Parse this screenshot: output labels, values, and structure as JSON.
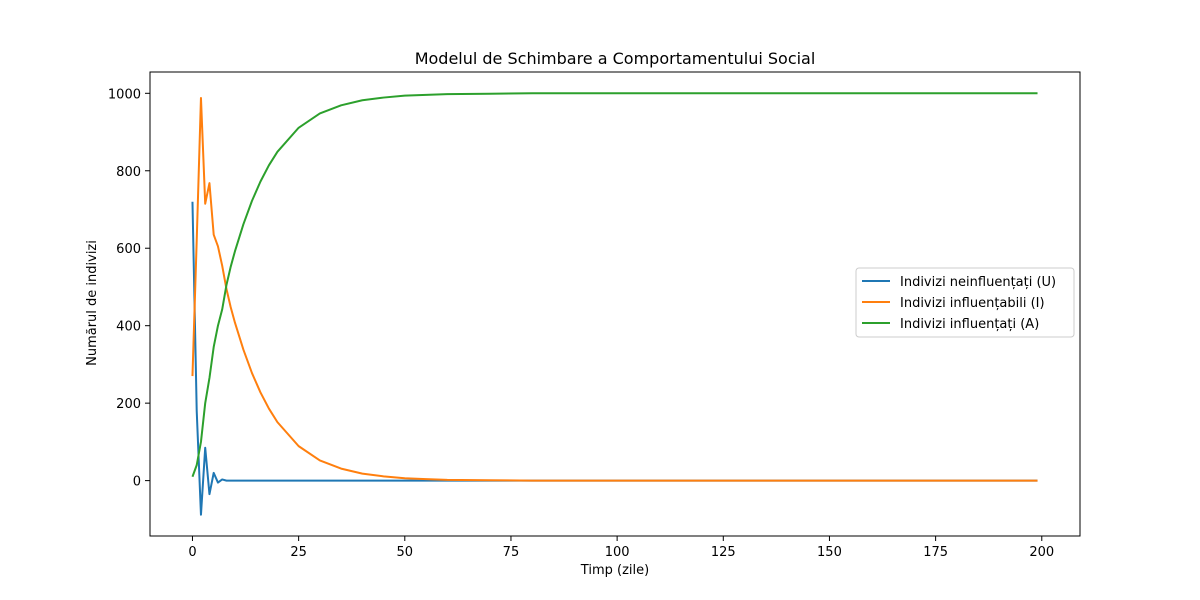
{
  "chart_data": {
    "type": "line",
    "title": "Modelul de Schimbare a Comportamentului Social",
    "xlabel": "Timp (zile)",
    "ylabel": "Numărul de indivizi",
    "xlim": [
      -10,
      209
    ],
    "ylim": [
      -143,
      1055
    ],
    "xticks": [
      0,
      25,
      50,
      75,
      100,
      125,
      150,
      175,
      200
    ],
    "yticks": [
      0,
      200,
      400,
      600,
      800,
      1000
    ],
    "grid": false,
    "legend_position": "center-right",
    "series": [
      {
        "name": "Indivizi neinfluențați (U)",
        "color": "#1f77b4",
        "x": [
          0,
          1,
          2,
          3,
          4,
          5,
          6,
          7,
          8,
          10,
          15,
          20,
          50,
          100,
          150,
          199
        ],
        "y": [
          720,
          180,
          -88,
          85,
          -35,
          20,
          -5,
          3,
          0,
          0,
          0,
          0,
          0,
          0,
          0,
          0
        ]
      },
      {
        "name": "Indivizi influențabili (I)",
        "color": "#ff7f0e",
        "x": [
          0,
          1,
          2,
          3,
          4,
          5,
          6,
          7,
          8,
          9,
          10,
          12,
          14,
          16,
          18,
          20,
          25,
          30,
          35,
          40,
          45,
          50,
          55,
          60,
          70,
          80,
          100,
          150,
          199
        ],
        "y": [
          270,
          620,
          988,
          715,
          768,
          635,
          605,
          555,
          495,
          448,
          408,
          338,
          278,
          228,
          186,
          151,
          89,
          52,
          31,
          18,
          11,
          6,
          4,
          2,
          1,
          0,
          0,
          0,
          0
        ]
      },
      {
        "name": "Indivizi influențați (A)",
        "color": "#2ca02c",
        "x": [
          0,
          1,
          2,
          3,
          4,
          5,
          6,
          7,
          8,
          9,
          10,
          12,
          14,
          16,
          18,
          20,
          25,
          30,
          35,
          40,
          45,
          50,
          60,
          70,
          80,
          100,
          150,
          199
        ],
        "y": [
          10,
          40,
          100,
          200,
          265,
          345,
          400,
          442,
          505,
          552,
          592,
          662,
          722,
          772,
          814,
          849,
          911,
          948,
          969,
          982,
          989,
          994,
          998,
          999,
          1000,
          1000,
          1000,
          1000
        ]
      }
    ]
  }
}
